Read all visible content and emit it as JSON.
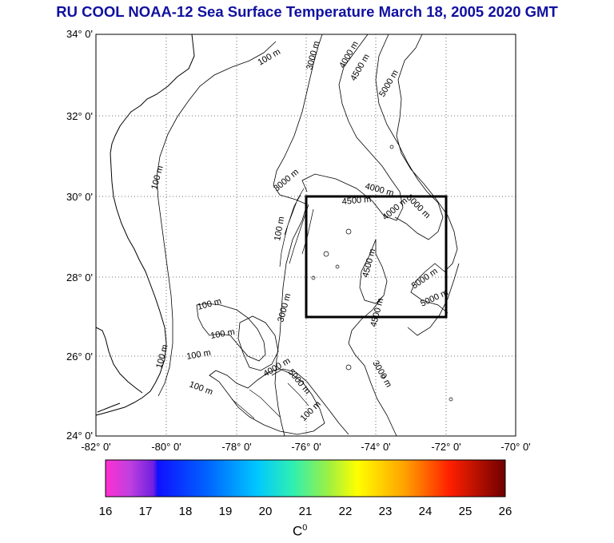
{
  "title": "RU COOL  NOAA-12 Sea Surface Temperature March 18, 2005 2020 GMT",
  "lat_labels": [
    "34° 0'",
    "32° 0'",
    "30° 0'",
    "28° 0'",
    "26° 0'",
    "24° 0'"
  ],
  "lon_labels": [
    "-82° 0'",
    "-80° 0'",
    "-78° 0'",
    "-76° 0'",
    "-74° 0'",
    "-72° 0'",
    "-70° 0'"
  ],
  "depth_labels": [
    "100 m",
    "3000 m",
    "4000 m",
    "4500 m",
    "5000 m",
    "100 m",
    "3000 m",
    "4000 m",
    "4500 m",
    "4000 m",
    "5000 m",
    "100 m",
    "3000 m",
    "4500 m",
    "5000 m",
    "5000 m",
    "4500 m",
    "100 m",
    "100 m",
    "100 m",
    "100 m",
    "4000 m",
    "5000 m",
    "3000 m",
    "100 m",
    "100 m"
  ],
  "colorbar": {
    "ticks": [
      "16",
      "17",
      "18",
      "19",
      "20",
      "21",
      "22",
      "23",
      "24",
      "25",
      "26"
    ],
    "unit": "C",
    "unit_sup": "0",
    "min": 16,
    "max": 26,
    "colors": [
      "#ff30d0",
      "#c040e0",
      "#1010ff",
      "#0070ff",
      "#00d0ff",
      "#30f0a0",
      "#a0f040",
      "#ffff00",
      "#ffa000",
      "#ff3000",
      "#c00000",
      "#700000"
    ]
  },
  "box_label": "study area box"
}
